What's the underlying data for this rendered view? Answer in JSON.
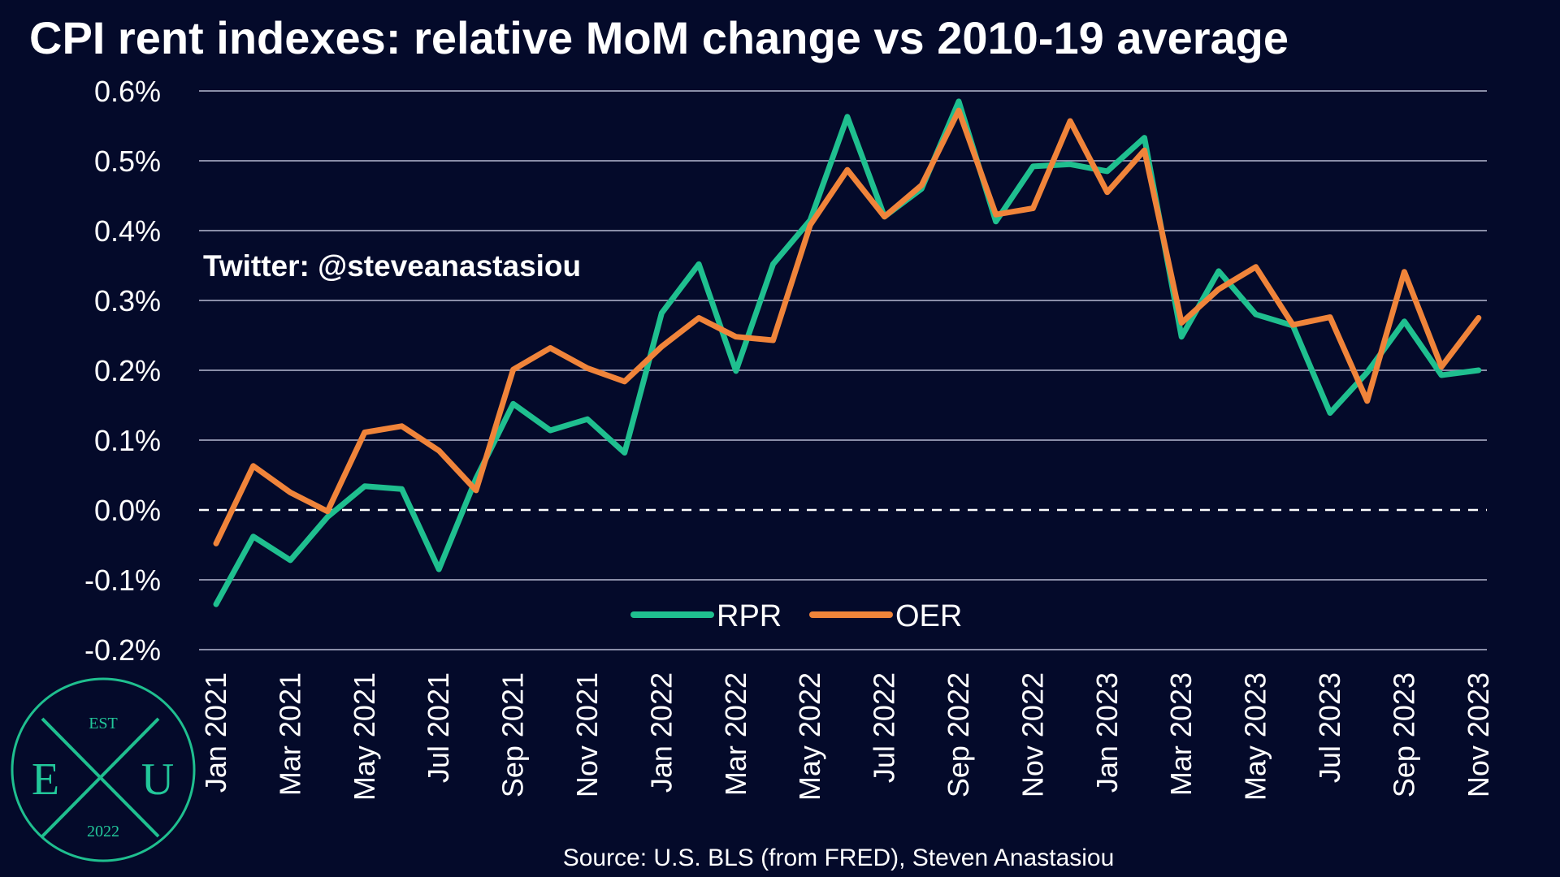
{
  "title": "CPI rent indexes: relative MoM change vs 2010-19 average",
  "watermark": "Twitter: @steveanastasiou",
  "source": "Source: U.S. BLS (from FRED), Steven Anastasiou",
  "logo": {
    "top": "EST",
    "left": "E",
    "center": "X",
    "right": "U",
    "bottom": "2022",
    "color": "#1fbf8f"
  },
  "colors": {
    "background": "#040a2a",
    "grid": "#8a8ea8",
    "zero_line": "#ffffff",
    "RPR": "#1fbf8f",
    "OER": "#f0843a",
    "text": "#ffffff"
  },
  "chart_data": {
    "type": "line",
    "title": "CPI rent indexes: relative MoM change vs 2010-19 average",
    "xlabel": "",
    "ylabel": "",
    "ylim": [
      -0.2,
      0.6
    ],
    "yticks": [
      -0.2,
      -0.1,
      0.0,
      0.1,
      0.2,
      0.3,
      0.4,
      0.5,
      0.6
    ],
    "ytick_labels": [
      "-0.2%",
      "-0.1%",
      "0.0%",
      "0.1%",
      "0.2%",
      "0.3%",
      "0.4%",
      "0.5%",
      "0.6%"
    ],
    "grid": true,
    "zero_line": "dashed",
    "legend_position": "bottom-center",
    "x": [
      "Jan 2021",
      "Feb 2021",
      "Mar 2021",
      "Apr 2021",
      "May 2021",
      "Jun 2021",
      "Jul 2021",
      "Aug 2021",
      "Sep 2021",
      "Oct 2021",
      "Nov 2021",
      "Dec 2021",
      "Jan 2022",
      "Feb 2022",
      "Mar 2022",
      "Apr 2022",
      "May 2022",
      "Jun 2022",
      "Jul 2022",
      "Aug 2022",
      "Sep 2022",
      "Oct 2022",
      "Nov 2022",
      "Dec 2022",
      "Jan 2023",
      "Feb 2023",
      "Mar 2023",
      "Apr 2023",
      "May 2023",
      "Jun 2023",
      "Jul 2023",
      "Aug 2023",
      "Sep 2023",
      "Oct 2023",
      "Nov 2023"
    ],
    "x_tick_labels": [
      "Jan 2021",
      "Mar 2021",
      "May 2021",
      "Jul 2021",
      "Sep 2021",
      "Nov 2021",
      "Jan 2022",
      "Mar 2022",
      "May 2022",
      "Jul 2022",
      "Sep 2022",
      "Nov 2022",
      "Jan 2023",
      "Mar 2023",
      "May 2023",
      "Jul 2023",
      "Sep 2023",
      "Nov 2023"
    ],
    "series": [
      {
        "name": "RPR",
        "values": [
          -0.135,
          -0.038,
          -0.072,
          -0.01,
          0.034,
          0.03,
          -0.085,
          0.045,
          0.152,
          0.114,
          0.13,
          0.082,
          0.282,
          0.352,
          0.199,
          0.352,
          0.415,
          0.563,
          0.42,
          0.46,
          0.585,
          0.413,
          0.492,
          0.495,
          0.485,
          0.533,
          0.248,
          0.342,
          0.28,
          0.264,
          0.139,
          0.197,
          0.27,
          0.193,
          0.2
        ]
      },
      {
        "name": "OER",
        "values": [
          -0.048,
          0.063,
          0.025,
          -0.002,
          0.111,
          0.12,
          0.085,
          0.028,
          0.201,
          0.232,
          0.203,
          0.184,
          0.234,
          0.275,
          0.248,
          0.243,
          0.408,
          0.487,
          0.42,
          0.465,
          0.572,
          0.423,
          0.432,
          0.557,
          0.455,
          0.515,
          0.268,
          0.316,
          0.348,
          0.265,
          0.276,
          0.156,
          0.341,
          0.205,
          0.275
        ]
      }
    ]
  }
}
